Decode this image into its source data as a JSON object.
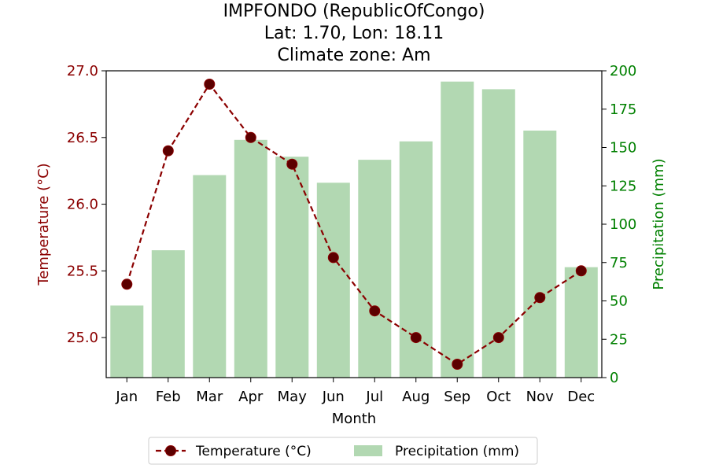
{
  "chart_data": {
    "type": "bar+line",
    "title_lines": [
      "IMPFONDO (RepublicOfCongo)",
      "Lat: 1.70, Lon: 18.11",
      "Climate zone: Am"
    ],
    "xlabel": "Month",
    "categories": [
      "Jan",
      "Feb",
      "Mar",
      "Apr",
      "May",
      "Jun",
      "Jul",
      "Aug",
      "Sep",
      "Oct",
      "Nov",
      "Dec"
    ],
    "temperature": {
      "name": "Temperature (°C)",
      "axis_label": "Temperature (°C)",
      "values": [
        25.4,
        26.4,
        26.9,
        26.5,
        26.3,
        25.6,
        25.2,
        25.0,
        24.8,
        25.0,
        25.3,
        25.5
      ],
      "ylim": [
        24.7,
        27.0
      ],
      "ticks": [
        25.0,
        25.5,
        26.0,
        26.5,
        27.0
      ],
      "tick_labels": [
        "25.0",
        "25.5",
        "26.0",
        "26.5",
        "27.0"
      ],
      "color": "#8b0000",
      "style": "dashed line with circle markers"
    },
    "precipitation": {
      "name": "Precipitation (mm)",
      "axis_label": "Precipitation (mm)",
      "values": [
        47,
        83,
        132,
        155,
        144,
        127,
        142,
        154,
        193,
        188,
        161,
        72
      ],
      "ylim": [
        0,
        200
      ],
      "ticks": [
        0,
        25,
        50,
        75,
        100,
        125,
        150,
        175,
        200
      ],
      "tick_labels": [
        "0",
        "25",
        "50",
        "75",
        "100",
        "125",
        "150",
        "175",
        "200"
      ],
      "color": "#b2d8b2",
      "axis_color": "#008000",
      "style": "bars"
    },
    "legend": {
      "placement": "bottom-center",
      "entries": [
        "Temperature (°C)",
        "Precipitation (mm)"
      ]
    },
    "grid": false
  }
}
